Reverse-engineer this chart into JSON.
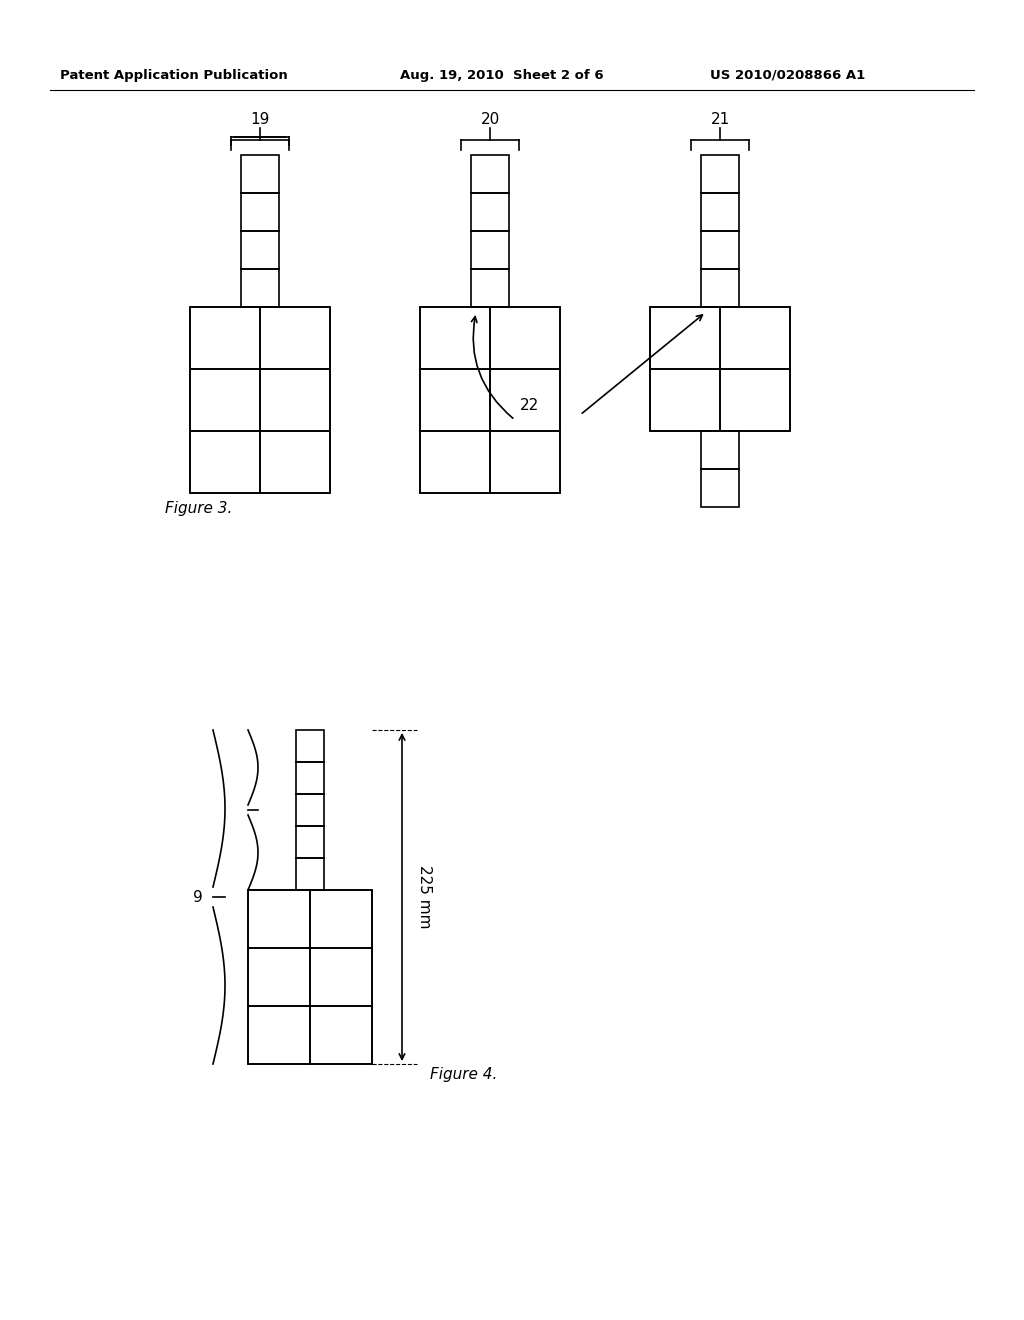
{
  "bg_color": "#ffffff",
  "header_left": "Patent Application Publication",
  "header_center": "Aug. 19, 2010  Sheet 2 of 6",
  "header_right": "US 2010/0208866 A1",
  "fig3_label": "Figure 3.",
  "fig4_label": "Figure 4.",
  "label_19": "19",
  "label_20": "20",
  "label_21": "21",
  "label_22": "22",
  "label_9": "9",
  "label_225mm": "225 mm",
  "line_color": "#000000",
  "line_width": 1.2
}
